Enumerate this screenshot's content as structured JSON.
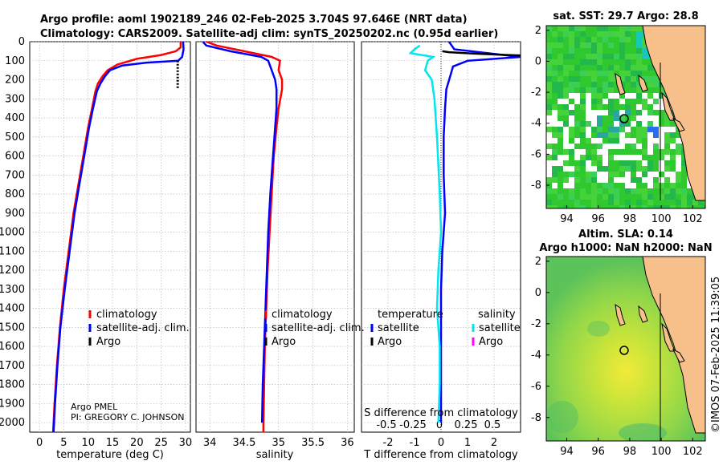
{
  "title": {
    "line1": "Argo profile: aoml 1902189_246 02-Feb-2025 3.704S 97.646E (NRT data)",
    "line2": "Climatology: CARS2009. Satellite-adj clim: synTS_20250202.nc (0.95d earlier)"
  },
  "credit": {
    "line1": "Argo PMEL",
    "line2": "PI: GREGORY C. JOHNSON"
  },
  "stamp": "©IMOS 07-Feb-2025 11:39:05",
  "colors": {
    "climatology": "#ff0000",
    "satellite": "#0000ff",
    "argo": "#000000",
    "sat_s": "#00e5ee",
    "argo_s": "#ff00ff"
  },
  "depth_ticks": [
    "0",
    "100",
    "200",
    "300",
    "400",
    "500",
    "600",
    "700",
    "800",
    "900",
    "1000",
    "1100",
    "1200",
    "1300",
    "1400",
    "1500",
    "1600",
    "1700",
    "1800",
    "1900",
    "2000"
  ],
  "chart_data": [
    {
      "id": "temperature",
      "type": "line",
      "xlabel": "temperature (deg C)",
      "ylabel": "depth",
      "xlim": [
        -2,
        31
      ],
      "ylim": [
        2050,
        0
      ],
      "xticks": [
        "0",
        "5",
        "10",
        "15",
        "20",
        "25",
        "30"
      ],
      "xtick_values": [
        0,
        5,
        10,
        15,
        20,
        25,
        30
      ],
      "legend": [
        "climatology",
        "satellite-adj. clim.",
        "Argo"
      ],
      "series": [
        {
          "name": "climatology",
          "color": "#ff0000",
          "points": [
            [
              29,
              0
            ],
            [
              29,
              30
            ],
            [
              28,
              50
            ],
            [
              25,
              70
            ],
            [
              20,
              90
            ],
            [
              16,
              120
            ],
            [
              14,
              150
            ],
            [
              13,
              180
            ],
            [
              12,
              220
            ],
            [
              11.5,
              260
            ],
            [
              10.8,
              350
            ],
            [
              10,
              450
            ],
            [
              9,
              600
            ],
            [
              8,
              750
            ],
            [
              7,
              900
            ],
            [
              6,
              1100
            ],
            [
              5,
              1300
            ],
            [
              4.2,
              1500
            ],
            [
              3.6,
              1700
            ],
            [
              3.1,
              1900
            ],
            [
              2.9,
              2000
            ],
            [
              2.8,
              2050
            ]
          ]
        },
        {
          "name": "satellite-adj. clim.",
          "color": "#0000ff",
          "points": [
            [
              29.5,
              0
            ],
            [
              29.6,
              40
            ],
            [
              29.3,
              80
            ],
            [
              28.5,
              100
            ],
            [
              22,
              110
            ],
            [
              17,
              125
            ],
            [
              14.5,
              150
            ],
            [
              13.5,
              180
            ],
            [
              12.5,
              220
            ],
            [
              11.8,
              260
            ],
            [
              11,
              350
            ],
            [
              10.2,
              450
            ],
            [
              9.2,
              600
            ],
            [
              8.2,
              750
            ],
            [
              7.2,
              900
            ],
            [
              6.2,
              1100
            ],
            [
              5.2,
              1300
            ],
            [
              4.3,
              1500
            ],
            [
              3.7,
              1700
            ],
            [
              3.2,
              1900
            ],
            [
              3,
              2000
            ],
            [
              2.9,
              2050
            ]
          ]
        },
        {
          "name": "Argo",
          "color": "#000000",
          "points": [
            [
              28.4,
              100
            ],
            [
              28.4,
              130
            ],
            [
              28.4,
              160
            ],
            [
              28.4,
              190
            ],
            [
              28.4,
              220
            ],
            [
              28.4,
              245
            ]
          ]
        }
      ]
    },
    {
      "id": "salinity",
      "type": "line",
      "xlabel": "salinity",
      "xlim": [
        33.8,
        36.1
      ],
      "ylim": [
        2050,
        0
      ],
      "xticks": [
        "34",
        "34.5",
        "35",
        "35.5",
        "36"
      ],
      "xtick_values": [
        34,
        34.5,
        35,
        35.5,
        36
      ],
      "legend": [
        "climatology",
        "satellite-adj. clim.",
        "Argo"
      ],
      "series": [
        {
          "name": "climatology",
          "color": "#ff0000",
          "points": [
            [
              33.95,
              0
            ],
            [
              34.1,
              20
            ],
            [
              34.5,
              50
            ],
            [
              34.9,
              80
            ],
            [
              35.02,
              100
            ],
            [
              35.0,
              150
            ],
            [
              35.05,
              200
            ],
            [
              35.05,
              250
            ],
            [
              35.0,
              350
            ],
            [
              34.97,
              450
            ],
            [
              34.93,
              600
            ],
            [
              34.9,
              800
            ],
            [
              34.87,
              1000
            ],
            [
              34.84,
              1200
            ],
            [
              34.82,
              1400
            ],
            [
              34.8,
              1600
            ],
            [
              34.79,
              1800
            ],
            [
              34.78,
              2000
            ],
            [
              34.78,
              2050
            ]
          ]
        },
        {
          "name": "satellite-adj. clim.",
          "color": "#0000ff",
          "points": [
            [
              33.9,
              0
            ],
            [
              33.95,
              20
            ],
            [
              34.3,
              50
            ],
            [
              34.75,
              80
            ],
            [
              34.85,
              100
            ],
            [
              34.9,
              150
            ],
            [
              34.95,
              200
            ],
            [
              34.97,
              250
            ],
            [
              34.97,
              350
            ],
            [
              34.95,
              450
            ],
            [
              34.92,
              600
            ],
            [
              34.88,
              800
            ],
            [
              34.85,
              1000
            ],
            [
              34.83,
              1200
            ],
            [
              34.81,
              1400
            ],
            [
              34.79,
              1600
            ],
            [
              34.77,
              1800
            ],
            [
              34.76,
              2000
            ]
          ]
        },
        {
          "name": "Argo",
          "color": "#000000",
          "points": []
        }
      ]
    },
    {
      "id": "differences",
      "type": "line",
      "xlabel": "T difference from climatology",
      "top_xlabel": "S difference from climatology",
      "xlim": [
        -3,
        3
      ],
      "ylim": [
        2050,
        0
      ],
      "xticks": [
        "-2",
        "-1",
        "0",
        "1",
        "2"
      ],
      "xtick_values": [
        -2,
        -1,
        0,
        1,
        2
      ],
      "top_xticks": [
        "-0.5",
        "-0.25",
        "0",
        "0.25",
        "0.5"
      ],
      "legend_headers": [
        "temperature",
        "salinity"
      ],
      "legend_t": [
        "satellite",
        "Argo"
      ],
      "legend_s": [
        "satellite",
        "Argo"
      ],
      "series": [
        {
          "name": "T satellite",
          "color": "#0000ff",
          "points": [
            [
              0.3,
              0
            ],
            [
              0.5,
              40
            ],
            [
              3,
              80
            ],
            [
              1,
              100
            ],
            [
              0.45,
              130
            ],
            [
              0.35,
              180
            ],
            [
              0.2,
              250
            ],
            [
              0.15,
              350
            ],
            [
              0.1,
              500
            ],
            [
              0.1,
              700
            ],
            [
              0.15,
              900
            ],
            [
              0.05,
              1100
            ],
            [
              0,
              1300
            ],
            [
              0,
              1500
            ],
            [
              0,
              1700
            ],
            [
              0,
              2000
            ]
          ]
        },
        {
          "name": "T Argo",
          "color": "#000000",
          "points": [
            [
              0.05,
              50
            ],
            [
              0.3,
              55
            ],
            [
              1.2,
              62
            ],
            [
              2.5,
              70
            ],
            [
              3,
              72
            ]
          ]
        },
        {
          "name": "S satellite",
          "color": "#00e5ee",
          "points": [
            [
              -0.8,
              20
            ],
            [
              -1,
              40
            ],
            [
              -1.15,
              60
            ],
            [
              -0.3,
              80
            ],
            [
              -0.5,
              100
            ],
            [
              -0.6,
              150
            ],
            [
              -0.35,
              200
            ],
            [
              -0.25,
              300
            ],
            [
              -0.15,
              500
            ],
            [
              -0.05,
              800
            ],
            [
              0,
              1000
            ],
            [
              -0.1,
              1200
            ],
            [
              -0.15,
              1400
            ],
            [
              -0.05,
              1600
            ],
            [
              -0.05,
              1800
            ],
            [
              -0.1,
              2000
            ]
          ]
        }
      ]
    },
    {
      "id": "sst_map",
      "type": "heatmap",
      "title": "sat. SST: 29.7 Argo: 28.8",
      "xticks": [
        "94",
        "96",
        "98",
        "100",
        "102"
      ],
      "yticks": [
        "2",
        "0",
        "-2",
        "-4",
        "-6",
        "-8"
      ],
      "xlim": [
        92.7,
        102.8
      ],
      "ylim": [
        -9.5,
        2.3
      ],
      "marker": {
        "lon": 97.646,
        "lat": -3.704
      }
    },
    {
      "id": "sla_map",
      "type": "heatmap",
      "title_line1": "Altim. SLA: 0.14",
      "title_line2": "Argo h1000: NaN h2000: NaN",
      "xticks": [
        "94",
        "96",
        "98",
        "100",
        "102"
      ],
      "yticks": [
        "2",
        "0",
        "-2",
        "-4",
        "-6",
        "-8"
      ],
      "xlim": [
        92.7,
        102.8
      ],
      "ylim": [
        -9.5,
        2.3
      ],
      "marker": {
        "lon": 97.646,
        "lat": -3.704
      }
    }
  ]
}
